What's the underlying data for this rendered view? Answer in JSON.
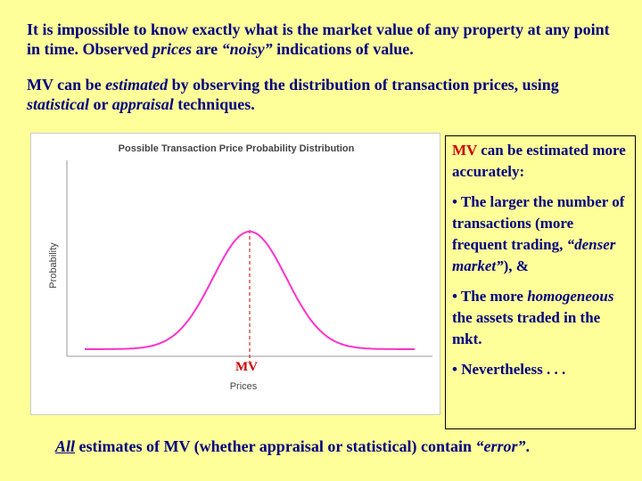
{
  "intro": {
    "p1": "It is impossible to know exactly what is the market value of any property at any point in time. Observed ",
    "p1_em": "prices",
    "p1_mid": " are ",
    "p1_noisy": "“noisy”",
    "p1_end": " indications of value.",
    "p2_a": "MV can be ",
    "p2_em1": "estimated",
    "p2_b": " by observing the distribution of transaction prices, using ",
    "p2_em2": "statistical",
    "p2_c": " or ",
    "p2_em3": "appraisal",
    "p2_d": " techniques."
  },
  "chart_data": {
    "type": "line",
    "title": "Possible Transaction Price Probability Distribution",
    "xlabel": "Prices",
    "ylabel": "Probability",
    "marker_label": "MV",
    "curve": "normal",
    "mean": 0,
    "std": 1,
    "xlim": [
      -4.5,
      4.5
    ],
    "line_color": "#ff33cc",
    "marker_color": "#cc0000",
    "grid": false
  },
  "sidebar": {
    "mv": "MV",
    "line1": " can be estimated more accurately:",
    "bullet1_a": "• The larger the number of transactions (more frequent trading, ",
    "bullet1_em": "“denser market”",
    "bullet1_b": "), &",
    "bullet2_a": "• The more ",
    "bullet2_em": "homogeneous",
    "bullet2_b": " the assets traded in the mkt.",
    "bullet3": "• Nevertheless . . ."
  },
  "footer": {
    "all": "All",
    "rest_a": " estimates of MV (whether appraisal or statistical) contain ",
    "error": "“error”",
    "rest_b": "."
  }
}
